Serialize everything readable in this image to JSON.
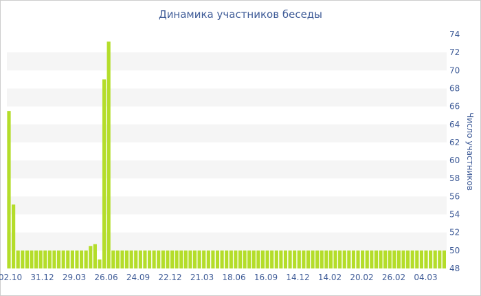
{
  "chart_data": {
    "type": "bar",
    "title": "Динамика участников беседы",
    "ylabel": "Число участников",
    "xlabel": "",
    "ylim": [
      48,
      74
    ],
    "y_ticks": [
      48,
      50,
      52,
      54,
      56,
      58,
      60,
      62,
      64,
      66,
      68,
      70,
      72,
      74
    ],
    "x_tick_labels": [
      "02.10",
      "31.12",
      "29.03",
      "26.06",
      "24.09",
      "22.12",
      "21.03",
      "18.06",
      "16.09",
      "14.12",
      "14.02",
      "20.02",
      "26.02",
      "04.03"
    ],
    "grid": "horizontal alternating bands",
    "bar_color": "#b4dd2a",
    "band_color": "#f5f5f5",
    "values": [
      65.5,
      55.1,
      50,
      50,
      50,
      50,
      50,
      50,
      50,
      50,
      50,
      50,
      50,
      50,
      50,
      50,
      50,
      50,
      50.5,
      50.7,
      49,
      69,
      73.2,
      50,
      50,
      50,
      50,
      50,
      50,
      50,
      50,
      50,
      50,
      50,
      50,
      50,
      50,
      50,
      50,
      50,
      50,
      50,
      50,
      50,
      50,
      50,
      50,
      50,
      50,
      50,
      50,
      50,
      50,
      50,
      50,
      50,
      50,
      50,
      50,
      50,
      50,
      50,
      50,
      50,
      50,
      50,
      50,
      50,
      50,
      50,
      50,
      50,
      50,
      50,
      50,
      50,
      50,
      50,
      50,
      50,
      50,
      50,
      50,
      50,
      50,
      50,
      50,
      50,
      50,
      50,
      50,
      50,
      50,
      50,
      50,
      50,
      50
    ]
  }
}
